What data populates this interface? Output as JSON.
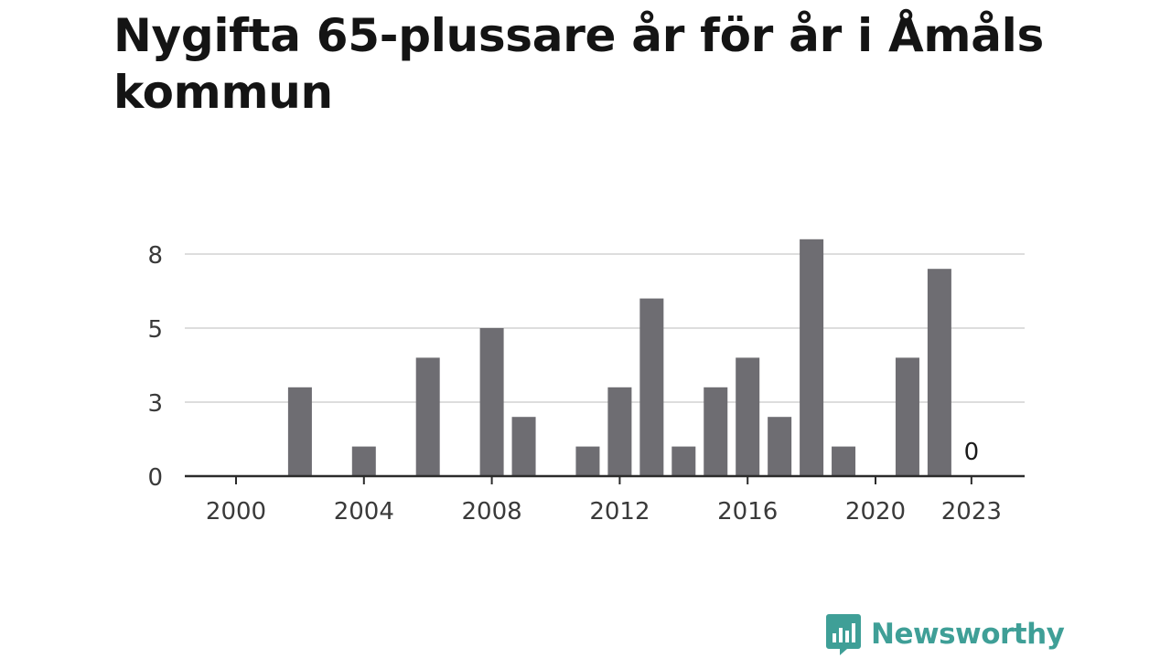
{
  "title": "Nygifta 65-plussare år för år i Åmåls kommun",
  "brand": {
    "name": "Newsworthy",
    "color": "#3f9f97",
    "icon": "bar-chart-speech-bubble-icon"
  },
  "chart_data": {
    "type": "bar",
    "title": "Nygifta 65-plussare år för år i Åmåls kommun",
    "xlabel": "",
    "ylabel": "",
    "x": [
      2000,
      2001,
      2002,
      2003,
      2004,
      2005,
      2006,
      2007,
      2008,
      2009,
      2010,
      2011,
      2012,
      2013,
      2014,
      2015,
      2016,
      2017,
      2018,
      2019,
      2020,
      2021,
      2022,
      2023
    ],
    "values": [
      0,
      0,
      3,
      0,
      1,
      0,
      4,
      0,
      5,
      2,
      0,
      1,
      3,
      6,
      1,
      3,
      4,
      2,
      8,
      1,
      0,
      4,
      7,
      0
    ],
    "x_ticks": [
      2000,
      2004,
      2008,
      2012,
      2016,
      2020,
      2023
    ],
    "y_ticks": [
      {
        "value": 0,
        "label": "0"
      },
      {
        "value": 2.5,
        "label": "3"
      },
      {
        "value": 5,
        "label": "5"
      },
      {
        "value": 7.5,
        "label": "8"
      }
    ],
    "ylim": [
      0,
      8
    ],
    "xlim": [
      2000,
      2023
    ],
    "annotations": [
      {
        "x": 2023,
        "text": "0"
      }
    ],
    "grid": true,
    "colors": {
      "bar": "#6e6d72",
      "grid": "#dddddd",
      "axis": "#2b2b2b"
    }
  }
}
